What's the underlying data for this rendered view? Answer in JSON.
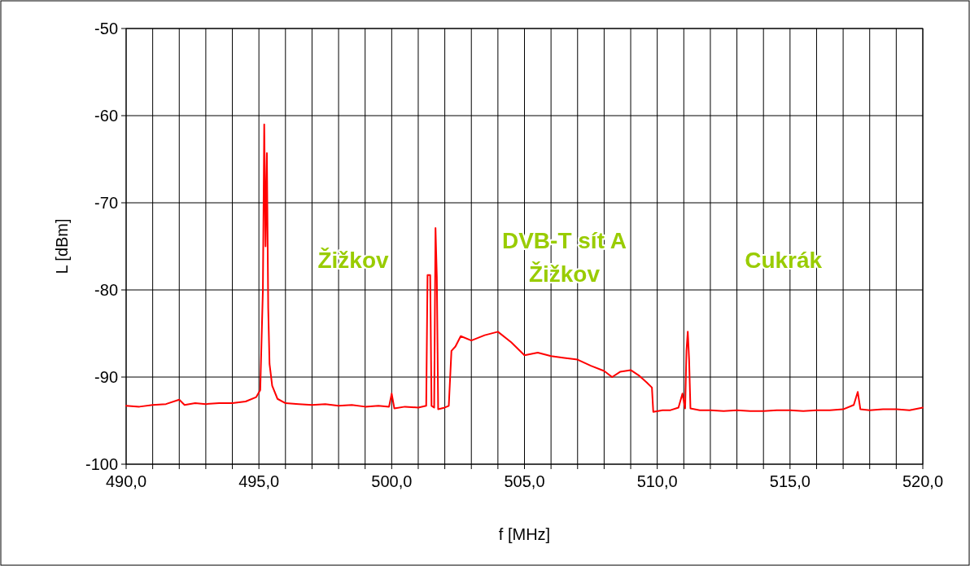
{
  "chart_data": {
    "type": "line",
    "xlabel": "f [MHz]",
    "ylabel": "L [dBm]",
    "xlim": [
      490,
      520
    ],
    "ylim": [
      -100,
      -50
    ],
    "xticks": [
      {
        "value": 490,
        "label": "490,0"
      },
      {
        "value": 491,
        "label": null
      },
      {
        "value": 492,
        "label": null
      },
      {
        "value": 493,
        "label": null
      },
      {
        "value": 494,
        "label": null
      },
      {
        "value": 495,
        "label": "495,0"
      },
      {
        "value": 496,
        "label": null
      },
      {
        "value": 497,
        "label": null
      },
      {
        "value": 498,
        "label": null
      },
      {
        "value": 499,
        "label": null
      },
      {
        "value": 500,
        "label": "500,0"
      },
      {
        "value": 501,
        "label": null
      },
      {
        "value": 502,
        "label": null
      },
      {
        "value": 503,
        "label": null
      },
      {
        "value": 504,
        "label": null
      },
      {
        "value": 505,
        "label": "505,0"
      },
      {
        "value": 506,
        "label": null
      },
      {
        "value": 507,
        "label": null
      },
      {
        "value": 508,
        "label": null
      },
      {
        "value": 509,
        "label": null
      },
      {
        "value": 510,
        "label": "510,0"
      },
      {
        "value": 511,
        "label": null
      },
      {
        "value": 512,
        "label": null
      },
      {
        "value": 513,
        "label": null
      },
      {
        "value": 514,
        "label": null
      },
      {
        "value": 515,
        "label": "515,0"
      },
      {
        "value": 516,
        "label": null
      },
      {
        "value": 517,
        "label": null
      },
      {
        "value": 518,
        "label": null
      },
      {
        "value": 519,
        "label": null
      },
      {
        "value": 520,
        "label": "520,0"
      }
    ],
    "yticks": [
      -100,
      -90,
      -80,
      -70,
      -60,
      -50
    ],
    "grid": true,
    "marker": "none",
    "line_style": "solid",
    "annotations": [
      "Žižkov",
      "DVB-T sít A\nŽižkov",
      "Cukrák"
    ],
    "series": [
      {
        "color": "#ff0000",
        "x": [
          490,
          490.5,
          491,
          491.5,
          492,
          492.2,
          492.6,
          493,
          493.5,
          494,
          494.5,
          494.9,
          495.05,
          495.15,
          495.2,
          495.25,
          495.3,
          495.35,
          495.4,
          495.5,
          495.7,
          496,
          496.5,
          497,
          497.5,
          498,
          498.5,
          499,
          499.5,
          499.9,
          500,
          500.1,
          500.5,
          501,
          501.3,
          501.35,
          501.45,
          501.5,
          501.6,
          501.65,
          501.7,
          501.75,
          502,
          502.15,
          502.25,
          502.4,
          502.6,
          503,
          503.5,
          504,
          504.5,
          505,
          505.5,
          506,
          506.5,
          507,
          507.5,
          508,
          508.3,
          508.6,
          509,
          509.3,
          509.6,
          509.8,
          509.85,
          510.2,
          510.5,
          510.8,
          510.95,
          511.05,
          511.1,
          511.15,
          511.2,
          511.25,
          511.6,
          512,
          512.5,
          513,
          513.5,
          514,
          514.5,
          515,
          515.5,
          516,
          516.5,
          517,
          517.4,
          517.55,
          517.65,
          518,
          518.5,
          519,
          519.5,
          520
        ],
        "values": [
          -93.3,
          -93.4,
          -93.2,
          -93.1,
          -92.6,
          -93.2,
          -93.0,
          -93.1,
          -93.0,
          -93.0,
          -92.8,
          -92.3,
          -91.5,
          -80,
          -61.0,
          -75,
          -64.3,
          -82,
          -88.5,
          -91,
          -92.5,
          -93,
          -93.1,
          -93.2,
          -93.1,
          -93.3,
          -93.2,
          -93.4,
          -93.3,
          -93.4,
          -91.9,
          -93.6,
          -93.4,
          -93.5,
          -93.3,
          -78.3,
          -78.3,
          -93.3,
          -93.5,
          -72.9,
          -78.5,
          -93.7,
          -93.5,
          -93.3,
          -87,
          -86.5,
          -85.3,
          -85.8,
          -85.2,
          -84.8,
          -86,
          -87.5,
          -87.2,
          -87.6,
          -87.8,
          -88,
          -88.7,
          -89.3,
          -90,
          -89.4,
          -89.2,
          -89.8,
          -90.6,
          -91.2,
          -94,
          -93.8,
          -93.8,
          -93.5,
          -91.9,
          -93.6,
          -87,
          -84.8,
          -88,
          -93.6,
          -93.8,
          -93.8,
          -93.9,
          -93.8,
          -93.9,
          -93.9,
          -93.8,
          -93.8,
          -93.9,
          -93.8,
          -93.8,
          -93.7,
          -93.2,
          -91.7,
          -93.7,
          -93.8,
          -93.7,
          -93.7,
          -93.8,
          -93.5
        ]
      }
    ]
  }
}
